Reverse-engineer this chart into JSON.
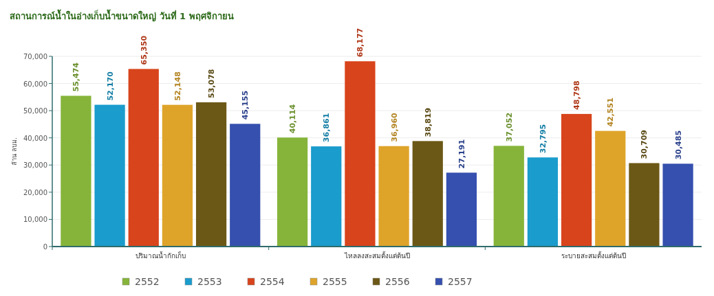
{
  "chart_data": {
    "type": "bar",
    "title": "สถานการณ์น้ำในอ่างเก็บน้ำขนาดใหญ่ วันที่ 1 พฤศจิกายน",
    "ylabel": "ล้าน ลบม.",
    "categories": [
      "ปริมาณน้ำกักเก็บ",
      "ไหลลงสะสมตั้งแต่ต้นปี",
      "ระบายสะสมตั้งแต่ต้นปี"
    ],
    "series": [
      {
        "name": "2552",
        "color": "#86b43a",
        "values": [
          55474,
          40114,
          37052
        ],
        "value_labels": [
          "55,474",
          "40,114",
          "37,052"
        ]
      },
      {
        "name": "2553",
        "color": "#1a9ccc",
        "values": [
          52170,
          36861,
          32795
        ],
        "value_labels": [
          "52,170",
          "36,861",
          "32,795"
        ]
      },
      {
        "name": "2554",
        "color": "#d8441c",
        "values": [
          65350,
          68177,
          48798
        ],
        "value_labels": [
          "65,350",
          "68,177",
          "48,798"
        ]
      },
      {
        "name": "2555",
        "color": "#dea42a",
        "values": [
          52148,
          36960,
          42551
        ],
        "value_labels": [
          "52,148",
          "36,960",
          "42,551"
        ]
      },
      {
        "name": "2556",
        "color": "#6c5816",
        "values": [
          53078,
          38819,
          30709
        ],
        "value_labels": [
          "53,078",
          "38,819",
          "30,709"
        ]
      },
      {
        "name": "2557",
        "color": "#3550ae",
        "values": [
          45155,
          27191,
          30485
        ],
        "value_labels": [
          "45,155",
          "27,191",
          "30,485"
        ]
      }
    ],
    "ylim": [
      0,
      70000
    ],
    "yticks": [
      {
        "value": 0,
        "label": "0"
      },
      {
        "value": 10000,
        "label": "10,000"
      },
      {
        "value": 20000,
        "label": "20,000"
      },
      {
        "value": 30000,
        "label": "30,000"
      },
      {
        "value": 40000,
        "label": "40,000"
      },
      {
        "value": 50000,
        "label": "50,000"
      },
      {
        "value": 60000,
        "label": "60,000"
      },
      {
        "value": 70000,
        "label": "70,000"
      }
    ],
    "grid": "y",
    "legend": "bottom"
  }
}
